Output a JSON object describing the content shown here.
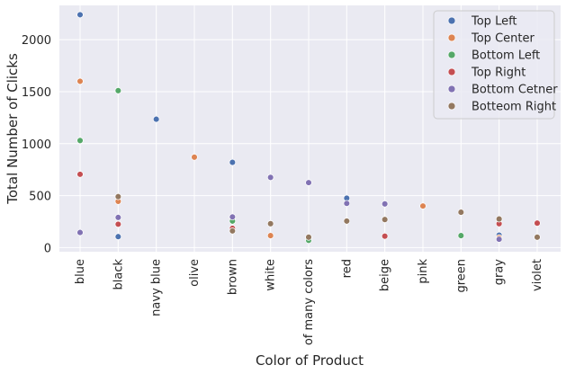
{
  "chart_data": {
    "type": "scatter",
    "xlabel": "Color of Product",
    "ylabel": "Total Number of Clicks",
    "categories": [
      "blue",
      "black",
      "navy blue",
      "olive",
      "brown",
      "white",
      "of many colors",
      "red",
      "beige",
      "pink",
      "green",
      "gray",
      "violet"
    ],
    "ylim": [
      -40,
      2330
    ],
    "yticks": [
      0,
      500,
      1000,
      1500,
      2000
    ],
    "grid": true,
    "legend_position": "top-right",
    "series": [
      {
        "name": "Top Left",
        "color": "#4c72b0",
        "points": [
          {
            "category": "blue",
            "value": 2240
          },
          {
            "category": "black",
            "value": 105
          },
          {
            "category": "navy blue",
            "value": 1235
          },
          {
            "category": "brown",
            "value": 820
          },
          {
            "category": "red",
            "value": 475
          },
          {
            "category": "gray",
            "value": 120
          }
        ]
      },
      {
        "name": "Top Center",
        "color": "#dd8452",
        "points": [
          {
            "category": "blue",
            "value": 1600
          },
          {
            "category": "black",
            "value": 445
          },
          {
            "category": "olive",
            "value": 870
          },
          {
            "category": "brown",
            "value": 290
          },
          {
            "category": "white",
            "value": 115
          },
          {
            "category": "of many colors",
            "value": 95
          },
          {
            "category": "pink",
            "value": 400
          },
          {
            "category": "gray",
            "value": 95
          }
        ]
      },
      {
        "name": "Bottom Left",
        "color": "#55a868",
        "points": [
          {
            "category": "blue",
            "value": 1030
          },
          {
            "category": "black",
            "value": 1510
          },
          {
            "category": "brown",
            "value": 255
          },
          {
            "category": "of many colors",
            "value": 70
          },
          {
            "category": "green",
            "value": 115
          },
          {
            "category": "gray",
            "value": 270
          }
        ]
      },
      {
        "name": "Top Right",
        "color": "#c44e52",
        "points": [
          {
            "category": "blue",
            "value": 705
          },
          {
            "category": "black",
            "value": 225
          },
          {
            "category": "brown",
            "value": 185
          },
          {
            "category": "beige",
            "value": 110
          },
          {
            "category": "gray",
            "value": 230
          },
          {
            "category": "violet",
            "value": 235
          }
        ]
      },
      {
        "name": "Bottom Cetner",
        "color": "#8172b3",
        "points": [
          {
            "category": "blue",
            "value": 145
          },
          {
            "category": "black",
            "value": 290
          },
          {
            "category": "brown",
            "value": 295
          },
          {
            "category": "white",
            "value": 675
          },
          {
            "category": "of many colors",
            "value": 625
          },
          {
            "category": "red",
            "value": 425
          },
          {
            "category": "beige",
            "value": 420
          },
          {
            "category": "gray",
            "value": 80
          }
        ]
      },
      {
        "name": "Botteom Right",
        "color": "#937860",
        "points": [
          {
            "category": "black",
            "value": 490
          },
          {
            "category": "brown",
            "value": 160
          },
          {
            "category": "white",
            "value": 230
          },
          {
            "category": "of many colors",
            "value": 100
          },
          {
            "category": "red",
            "value": 255
          },
          {
            "category": "beige",
            "value": 270
          },
          {
            "category": "green",
            "value": 340
          },
          {
            "category": "gray",
            "value": 275
          },
          {
            "category": "violet",
            "value": 100
          }
        ]
      }
    ]
  }
}
